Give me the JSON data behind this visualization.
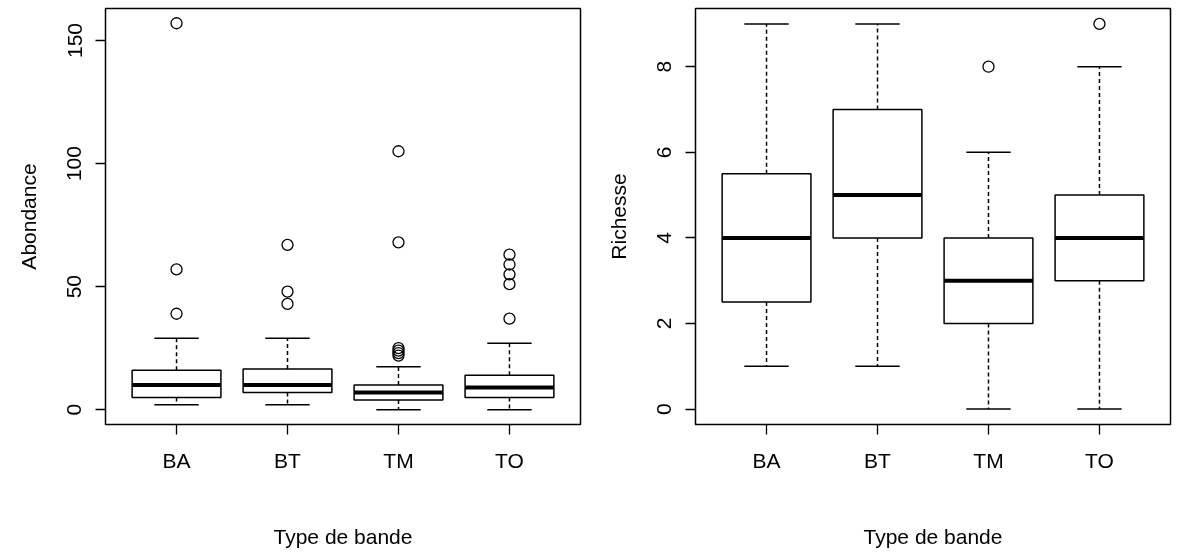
{
  "chart_data": [
    {
      "type": "box",
      "xlabel": "Type de bande",
      "ylabel": "Abondance",
      "categories": [
        "BA",
        "BT",
        "TM",
        "TO"
      ],
      "ylim": [
        -6,
        163
      ],
      "yticks": [
        0,
        50,
        100,
        150
      ],
      "grid": false,
      "line_style": "dashed",
      "boxes": [
        {
          "low": 2,
          "q1": 5,
          "median": 10,
          "q3": 16,
          "high": 29,
          "outliers": [
            39,
            57,
            157
          ]
        },
        {
          "low": 2,
          "q1": 7,
          "median": 10,
          "q3": 16.5,
          "high": 29,
          "outliers": [
            43,
            48,
            67
          ]
        },
        {
          "low": 0,
          "q1": 4,
          "median": 7,
          "q3": 10,
          "high": 17.5,
          "outliers": [
            22,
            23,
            24,
            25,
            68,
            105
          ]
        },
        {
          "low": 0,
          "q1": 5,
          "median": 9,
          "q3": 14,
          "high": 27,
          "outliers": [
            37,
            51,
            55,
            59,
            63
          ]
        }
      ]
    },
    {
      "type": "box",
      "xlabel": "Type de bande",
      "ylabel": "Richesse",
      "categories": [
        "BA",
        "BT",
        "TM",
        "TO"
      ],
      "ylim": [
        -0.36,
        9.36
      ],
      "yticks": [
        0,
        2,
        4,
        6,
        8
      ],
      "grid": false,
      "line_style": "dashed",
      "boxes": [
        {
          "low": 1,
          "q1": 2.5,
          "median": 4,
          "q3": 5.5,
          "high": 9
        },
        {
          "low": 1,
          "q1": 4,
          "median": 5,
          "q3": 7,
          "high": 9
        },
        {
          "low": 0,
          "q1": 2,
          "median": 3,
          "q3": 4,
          "high": 6,
          "outliers": [
            8
          ]
        },
        {
          "low": 0,
          "q1": 3,
          "median": 4,
          "q3": 5,
          "high": 8,
          "outliers": [
            9
          ]
        }
      ]
    }
  ]
}
